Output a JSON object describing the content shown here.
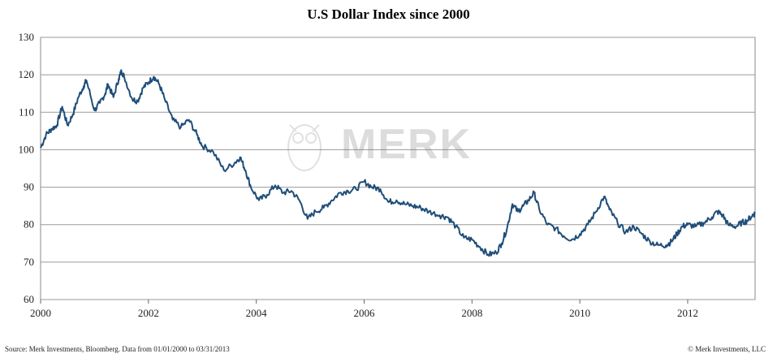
{
  "chart_data": {
    "type": "line",
    "title": "U.S Dollar Index since 2000",
    "xlabel": "",
    "ylabel": "",
    "xlim": [
      2000.0,
      2013.25
    ],
    "ylim": [
      60,
      130
    ],
    "yticks": [
      60,
      70,
      80,
      90,
      100,
      110,
      120,
      130
    ],
    "xticks": [
      2000,
      2002,
      2004,
      2006,
      2008,
      2010,
      2012
    ],
    "grid": "horizontal",
    "legend": "none",
    "series": [
      {
        "color": "#1f4e79",
        "points": [
          [
            2000.0,
            100.5
          ],
          [
            2000.1,
            104.0
          ],
          [
            2000.2,
            105.5
          ],
          [
            2000.3,
            106.5
          ],
          [
            2000.4,
            111.5
          ],
          [
            2000.5,
            106.5
          ],
          [
            2000.6,
            109.5
          ],
          [
            2000.7,
            114.0
          ],
          [
            2000.8,
            117.0
          ],
          [
            2000.85,
            118.5
          ],
          [
            2001.0,
            110.5
          ],
          [
            2001.1,
            112.5
          ],
          [
            2001.2,
            115.0
          ],
          [
            2001.25,
            117.5
          ],
          [
            2001.35,
            114.0
          ],
          [
            2001.45,
            119.0
          ],
          [
            2001.5,
            121.0
          ],
          [
            2001.55,
            119.5
          ],
          [
            2001.7,
            113.5
          ],
          [
            2001.8,
            113.0
          ],
          [
            2001.9,
            116.5
          ],
          [
            2002.0,
            118.0
          ],
          [
            2002.1,
            119.5
          ],
          [
            2002.2,
            117.5
          ],
          [
            2002.3,
            113.5
          ],
          [
            2002.45,
            108.0
          ],
          [
            2002.6,
            106.0
          ],
          [
            2002.75,
            108.0
          ],
          [
            2002.9,
            104.0
          ],
          [
            2003.0,
            101.0
          ],
          [
            2003.2,
            99.5
          ],
          [
            2003.4,
            94.5
          ],
          [
            2003.6,
            96.5
          ],
          [
            2003.7,
            98.0
          ],
          [
            2003.8,
            94.5
          ],
          [
            2003.9,
            90.0
          ],
          [
            2004.05,
            86.5
          ],
          [
            2004.2,
            88.0
          ],
          [
            2004.35,
            90.5
          ],
          [
            2004.5,
            88.5
          ],
          [
            2004.65,
            89.0
          ],
          [
            2004.8,
            86.5
          ],
          [
            2004.95,
            81.5
          ],
          [
            2005.1,
            83.5
          ],
          [
            2005.25,
            84.5
          ],
          [
            2005.4,
            86.5
          ],
          [
            2005.55,
            88.5
          ],
          [
            2005.7,
            89.0
          ],
          [
            2005.85,
            89.5
          ],
          [
            2006.0,
            91.5
          ],
          [
            2006.15,
            90.0
          ],
          [
            2006.3,
            89.5
          ],
          [
            2006.45,
            86.0
          ],
          [
            2006.6,
            86.5
          ],
          [
            2006.75,
            85.5
          ],
          [
            2006.9,
            85.0
          ],
          [
            2007.05,
            84.5
          ],
          [
            2007.2,
            83.5
          ],
          [
            2007.4,
            82.5
          ],
          [
            2007.55,
            82.0
          ],
          [
            2007.7,
            79.5
          ],
          [
            2007.85,
            76.5
          ],
          [
            2008.0,
            76.0
          ],
          [
            2008.15,
            74.0
          ],
          [
            2008.3,
            72.0
          ],
          [
            2008.45,
            72.5
          ],
          [
            2008.55,
            75.0
          ],
          [
            2008.65,
            79.0
          ],
          [
            2008.75,
            85.5
          ],
          [
            2008.85,
            83.5
          ],
          [
            2008.95,
            85.0
          ],
          [
            2009.05,
            86.5
          ],
          [
            2009.15,
            88.5
          ],
          [
            2009.25,
            84.0
          ],
          [
            2009.4,
            80.0
          ],
          [
            2009.55,
            79.0
          ],
          [
            2009.7,
            77.0
          ],
          [
            2009.85,
            76.0
          ],
          [
            2010.0,
            77.5
          ],
          [
            2010.15,
            80.0
          ],
          [
            2010.3,
            83.5
          ],
          [
            2010.45,
            87.5
          ],
          [
            2010.55,
            84.0
          ],
          [
            2010.7,
            80.5
          ],
          [
            2010.85,
            78.0
          ],
          [
            2011.0,
            79.5
          ],
          [
            2011.15,
            77.5
          ],
          [
            2011.3,
            75.5
          ],
          [
            2011.45,
            74.5
          ],
          [
            2011.6,
            74.5
          ],
          [
            2011.7,
            75.5
          ],
          [
            2011.8,
            77.5
          ],
          [
            2011.9,
            79.5
          ],
          [
            2012.0,
            80.0
          ],
          [
            2012.15,
            79.5
          ],
          [
            2012.3,
            80.5
          ],
          [
            2012.45,
            82.0
          ],
          [
            2012.55,
            83.5
          ],
          [
            2012.65,
            82.5
          ],
          [
            2012.75,
            80.0
          ],
          [
            2012.9,
            79.5
          ],
          [
            2013.0,
            80.5
          ],
          [
            2013.1,
            81.0
          ],
          [
            2013.2,
            82.5
          ],
          [
            2013.25,
            83.0
          ]
        ]
      }
    ],
    "source_note": "Source: Merk Investments, Bloomberg. Data from 01/01/2000 to 03/31/2013",
    "copyright_note": "© Merk Investments, LLC",
    "watermark": "MERK"
  }
}
